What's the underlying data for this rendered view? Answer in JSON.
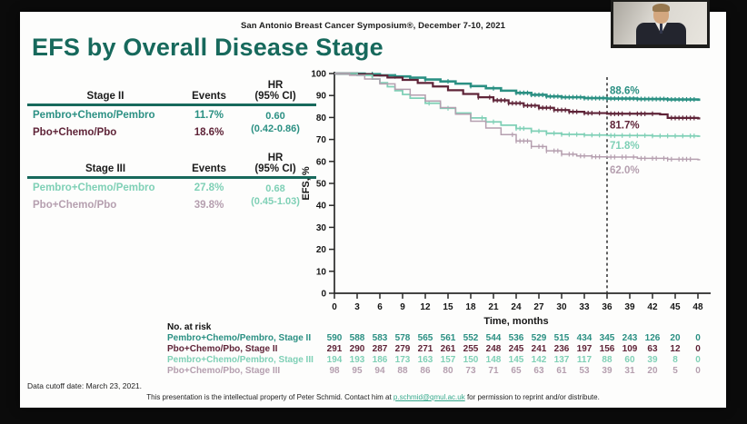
{
  "slide": {
    "header": "San Antonio Breast Cancer Symposium®, December 7-10, 2021",
    "title": "EFS by Overall Disease Stage"
  },
  "colors": {
    "title_teal": "#17695c",
    "stage2_pembro": "#2b9083",
    "stage2_pbo": "#5f2438",
    "stage3_pembro": "#7fd0b6",
    "stage3_pbo": "#b59faf",
    "link": "#35a98c",
    "axis": "#2a2a2a"
  },
  "tables": {
    "stage2": {
      "title": "Stage II",
      "events_header": "Events",
      "hr_header_line1": "HR",
      "hr_header_line2": "(95% CI)",
      "rows": [
        {
          "name": "Pembro+Chemo/Pembro",
          "events": "11.7%",
          "color": "#2b9083"
        },
        {
          "name": "Pbo+Chemo/Pbo",
          "events": "18.6%",
          "color": "#5f2438"
        }
      ],
      "hr_value": "0.60",
      "hr_ci": "(0.42-0.86)",
      "hr_color": "#2b9083"
    },
    "stage3": {
      "title": "Stage III",
      "events_header": "Events",
      "hr_header_line1": "HR",
      "hr_header_line2": "(95% CI)",
      "rows": [
        {
          "name": "Pembro+Chemo/Pembro",
          "events": "27.8%",
          "color": "#7fd0b6"
        },
        {
          "name": "Pbo+Chemo/Pbo",
          "events": "39.8%",
          "color": "#b59faf"
        }
      ],
      "hr_value": "0.68",
      "hr_ci": "(0.45-1.03)",
      "hr_color": "#7fd0b6"
    }
  },
  "chart_data": {
    "type": "line",
    "subtype": "kaplan-meier-step",
    "xlabel": "Time, months",
    "ylabel": "EFS, %",
    "xlim": [
      0,
      48
    ],
    "ylim": [
      0,
      100
    ],
    "xticks": [
      0,
      3,
      6,
      9,
      12,
      15,
      18,
      21,
      24,
      27,
      30,
      33,
      36,
      39,
      42,
      45,
      48
    ],
    "yticks": [
      0,
      10,
      20,
      30,
      40,
      50,
      60,
      70,
      80,
      90,
      100
    ],
    "grid": false,
    "reference_line_x": 36,
    "series": [
      {
        "name": "Pembro+Chemo/Pembro, Stage II",
        "color": "#2b9083",
        "label_at_ref": "88.6%",
        "points": [
          [
            0,
            100
          ],
          [
            4,
            99.7
          ],
          [
            6,
            99.2
          ],
          [
            8,
            98.7
          ],
          [
            10,
            98.1
          ],
          [
            12,
            97.3
          ],
          [
            14,
            96.4
          ],
          [
            16,
            95.4
          ],
          [
            18,
            94.3
          ],
          [
            20,
            93.3
          ],
          [
            22,
            92.2
          ],
          [
            24,
            91.2
          ],
          [
            26,
            90.3
          ],
          [
            28,
            89.6
          ],
          [
            30,
            89.2
          ],
          [
            33,
            88.8
          ],
          [
            36,
            88.6
          ],
          [
            40,
            88.4
          ],
          [
            44,
            88.2
          ],
          [
            48,
            88.1
          ]
        ],
        "censor_ticks": [
          5,
          8,
          10,
          12,
          15,
          18,
          21,
          24,
          24.5,
          25,
          25.5,
          26,
          26.5,
          27,
          27.5,
          28,
          28.5,
          29,
          29.5,
          30,
          30.5,
          31,
          31.5,
          32,
          32.5,
          33,
          33.5,
          34,
          34.5,
          35,
          35.5,
          36,
          36.5,
          37,
          37.5,
          38,
          38.5,
          39,
          39.5,
          40,
          40.5,
          41,
          41.5,
          42,
          42.5,
          43,
          43.5,
          44,
          44.5,
          45,
          45.5,
          46,
          46.5,
          47,
          47.5
        ]
      },
      {
        "name": "Pbo+Chemo/Pbo, Stage II",
        "color": "#5f2438",
        "label_at_ref": "81.7%",
        "points": [
          [
            0,
            100
          ],
          [
            3,
            99.7
          ],
          [
            5,
            99.1
          ],
          [
            7,
            98.2
          ],
          [
            9,
            97.1
          ],
          [
            11,
            95.7
          ],
          [
            13,
            94.1
          ],
          [
            15,
            92.4
          ],
          [
            17,
            90.7
          ],
          [
            19,
            89.2
          ],
          [
            21,
            87.8
          ],
          [
            23,
            86.5
          ],
          [
            25,
            85.4
          ],
          [
            27,
            84.4
          ],
          [
            29,
            83.4
          ],
          [
            31,
            82.6
          ],
          [
            33,
            82.0
          ],
          [
            36,
            81.7
          ],
          [
            43,
            81.4
          ],
          [
            44,
            79.8
          ],
          [
            48,
            79.6
          ]
        ],
        "censor_ticks": [
          19,
          20.5,
          21,
          21.5,
          22,
          22.5,
          23,
          23.5,
          24,
          24.5,
          25,
          25.5,
          26,
          26.5,
          27,
          27.5,
          28,
          28.5,
          29,
          29.5,
          30,
          30.5,
          31,
          31.5,
          32,
          33,
          33.5,
          34,
          35,
          36.5,
          37,
          37.5,
          38,
          39,
          40,
          40.5,
          41,
          42,
          44.5,
          45,
          45.5,
          46,
          46.5,
          47,
          47.5
        ]
      },
      {
        "name": "Pembro+Chemo/Pembro, Stage III",
        "color": "#7fd0b6",
        "label_at_ref": "71.8%",
        "points": [
          [
            0,
            100
          ],
          [
            3,
            99.2
          ],
          [
            5,
            97.5
          ],
          [
            6,
            95.8
          ],
          [
            7,
            94.0
          ],
          [
            8,
            92.2
          ],
          [
            9,
            90.5
          ],
          [
            10,
            88.8
          ],
          [
            12,
            86.5
          ],
          [
            14,
            84.2
          ],
          [
            16,
            82.0
          ],
          [
            18,
            79.8
          ],
          [
            20,
            78.0
          ],
          [
            22,
            76.5
          ],
          [
            24,
            75.0
          ],
          [
            26,
            73.8
          ],
          [
            28,
            72.8
          ],
          [
            30,
            72.3
          ],
          [
            33,
            72.0
          ],
          [
            36,
            71.8
          ],
          [
            42,
            71.6
          ],
          [
            48,
            71.5
          ]
        ],
        "censor_ticks": [
          12.5,
          15,
          18,
          19.5,
          21,
          24,
          24.5,
          25,
          26,
          27,
          28,
          29,
          30,
          31,
          32,
          33,
          34,
          35,
          36.5,
          37,
          38,
          39,
          40,
          41,
          42,
          43,
          44,
          45,
          46,
          47,
          47.5
        ]
      },
      {
        "name": "Pbo+Chemo/Pbo, Stage III",
        "color": "#b59faf",
        "label_at_ref": "62.0%",
        "points": [
          [
            0,
            100
          ],
          [
            2,
            99.2
          ],
          [
            4,
            97.5
          ],
          [
            6,
            95.3
          ],
          [
            8,
            92.8
          ],
          [
            10,
            90.2
          ],
          [
            12,
            87.5
          ],
          [
            14,
            84.5
          ],
          [
            16,
            81.5
          ],
          [
            18,
            78.3
          ],
          [
            20,
            75.2
          ],
          [
            22,
            72.2
          ],
          [
            24,
            69.3
          ],
          [
            26,
            66.8
          ],
          [
            28,
            64.8
          ],
          [
            30,
            63.3
          ],
          [
            32,
            62.5
          ],
          [
            34,
            62.1
          ],
          [
            36,
            62.0
          ],
          [
            40,
            61.4
          ],
          [
            44,
            61.0
          ],
          [
            48,
            60.8
          ]
        ],
        "censor_ticks": [
          23.5,
          24,
          24.5,
          25,
          25.5,
          26,
          27,
          27.5,
          28,
          29,
          29.5,
          30,
          31,
          31.5,
          32.5,
          33,
          34,
          34.5,
          35,
          36.5,
          37,
          38,
          38.5,
          39.5,
          40.5,
          41,
          42,
          42.5,
          43.5,
          44,
          44.5,
          45.5,
          46,
          46.5,
          47
        ]
      }
    ],
    "no_at_risk": {
      "header": "No. at risk",
      "rows": [
        {
          "label": "Pembro+Chemo/Pembro, Stage II",
          "color": "#2b9083",
          "values": [
            590,
            588,
            583,
            578,
            565,
            561,
            552,
            544,
            536,
            529,
            515,
            434,
            345,
            243,
            126,
            20,
            0
          ]
        },
        {
          "label": "Pbo+Chemo/Pbo, Stage II",
          "color": "#5f2438",
          "values": [
            291,
            290,
            287,
            279,
            271,
            261,
            255,
            248,
            245,
            241,
            236,
            197,
            156,
            109,
            63,
            12,
            0
          ]
        },
        {
          "label": "Pembro+Chemo/Pembro, Stage III",
          "color": "#7fd0b6",
          "values": [
            194,
            193,
            186,
            173,
            163,
            157,
            150,
            148,
            145,
            142,
            137,
            117,
            88,
            60,
            39,
            8,
            0
          ]
        },
        {
          "label": "Pbo+Chemo/Pbo, Stage III",
          "color": "#b59faf",
          "values": [
            98,
            95,
            94,
            88,
            86,
            80,
            73,
            71,
            65,
            63,
            61,
            53,
            39,
            31,
            20,
            5,
            0
          ]
        }
      ]
    }
  },
  "footer": {
    "cutoff": "Data cutoff date: March 23, 2021.",
    "permission_pre": "This presentation is the intellectual property of Peter Schmid. Contact him at ",
    "email": "p.schmid@qmul.ac.uk",
    "permission_post": " for permission to reprint and/or distribute."
  },
  "webcam": {
    "label": "presenter video"
  }
}
